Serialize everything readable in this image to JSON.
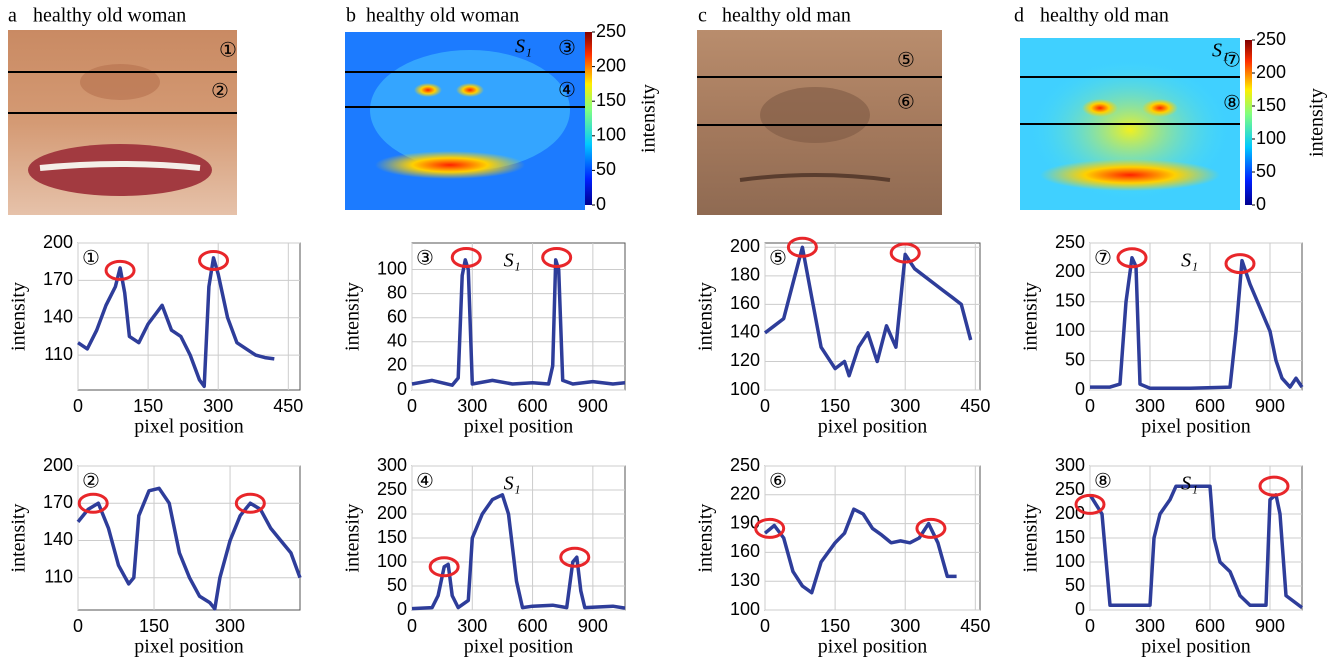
{
  "panels": [
    {
      "label": "a",
      "title": "healthy old woman",
      "markers": [
        "①",
        "②"
      ]
    },
    {
      "label": "b",
      "title": "healthy old woman",
      "markers": [
        "③",
        "④"
      ],
      "annotation": "S₁",
      "colorbar": {
        "label": "intensity",
        "lim": [
          0,
          250
        ],
        "ticks": [
          0,
          50,
          100,
          150,
          200,
          250
        ]
      }
    },
    {
      "label": "c",
      "title": "healthy old man",
      "markers": [
        "⑤",
        "⑥"
      ]
    },
    {
      "label": "d",
      "title": "healthy old man",
      "markers": [
        "⑦",
        "⑧"
      ],
      "annotation": "S₁",
      "colorbar": {
        "label": "intensity",
        "lim": [
          0,
          250
        ],
        "ticks": [
          0,
          50,
          100,
          150,
          200,
          250
        ]
      }
    }
  ],
  "chart_data": [
    {
      "type": "line",
      "marker": "①",
      "xlabel": "pixel position",
      "ylabel": "intensity",
      "color": "#2e3d9a",
      "grid": true,
      "xlim": [
        0,
        475
      ],
      "ylim": [
        82,
        200
      ],
      "xticks": [
        0,
        150,
        300,
        450
      ],
      "yticks": [
        110,
        140,
        170,
        200
      ],
      "x": [
        0,
        20,
        40,
        60,
        80,
        90,
        100,
        110,
        130,
        150,
        170,
        180,
        200,
        220,
        240,
        260,
        270,
        280,
        290,
        300,
        320,
        340,
        360,
        380,
        400,
        420
      ],
      "values": [
        120,
        115,
        130,
        150,
        165,
        180,
        160,
        125,
        120,
        135,
        145,
        150,
        130,
        125,
        110,
        90,
        85,
        165,
        188,
        175,
        140,
        120,
        115,
        110,
        108,
        107
      ],
      "highlights": [
        {
          "x": 90,
          "y": 178
        },
        {
          "x": 290,
          "y": 186
        }
      ]
    },
    {
      "type": "line",
      "marker": "②",
      "xlabel": "pixel position",
      "ylabel": "intensity",
      "color": "#2e3d9a",
      "grid": true,
      "xlim": [
        0,
        438
      ],
      "ylim": [
        84,
        200
      ],
      "xticks": [
        0,
        150,
        300
      ],
      "yticks": [
        110,
        140,
        170,
        200
      ],
      "x": [
        0,
        20,
        40,
        60,
        80,
        100,
        110,
        120,
        140,
        160,
        180,
        200,
        220,
        240,
        260,
        270,
        280,
        300,
        320,
        340,
        360,
        380,
        400,
        420,
        438
      ],
      "values": [
        155,
        165,
        170,
        150,
        120,
        105,
        110,
        160,
        180,
        182,
        170,
        130,
        110,
        95,
        90,
        85,
        110,
        140,
        160,
        170,
        165,
        150,
        140,
        130,
        110
      ],
      "highlights": [
        {
          "x": 30,
          "y": 170
        },
        {
          "x": 340,
          "y": 170
        }
      ]
    },
    {
      "type": "line",
      "marker": "③",
      "annotation": "S₁",
      "xlabel": "pixel position",
      "ylabel": "intensity",
      "color": "#2e3d9a",
      "grid": true,
      "xlim": [
        0,
        1060
      ],
      "ylim": [
        0,
        122
      ],
      "xticks": [
        0,
        300,
        600,
        900
      ],
      "yticks": [
        0,
        20,
        40,
        60,
        80,
        100
      ],
      "x": [
        0,
        100,
        200,
        230,
        250,
        265,
        280,
        300,
        400,
        500,
        600,
        680,
        700,
        715,
        730,
        750,
        800,
        900,
        1000,
        1060
      ],
      "values": [
        5,
        8,
        4,
        10,
        95,
        108,
        100,
        5,
        8,
        5,
        6,
        5,
        20,
        108,
        100,
        8,
        5,
        7,
        5,
        6
      ],
      "highlights": [
        {
          "x": 270,
          "y": 110
        },
        {
          "x": 720,
          "y": 110
        }
      ]
    },
    {
      "type": "line",
      "marker": "④",
      "annotation": "S₁",
      "xlabel": "pixel position",
      "ylabel": "intensity",
      "color": "#2e3d9a",
      "grid": true,
      "xlim": [
        0,
        1060
      ],
      "ylim": [
        0,
        300
      ],
      "xticks": [
        0,
        300,
        600,
        900
      ],
      "yticks": [
        0,
        50,
        100,
        150,
        200,
        250,
        300
      ],
      "x": [
        0,
        100,
        130,
        160,
        180,
        200,
        230,
        280,
        300,
        350,
        400,
        450,
        480,
        520,
        550,
        600,
        700,
        770,
        800,
        820,
        840,
        860,
        1000,
        1060
      ],
      "values": [
        3,
        5,
        30,
        90,
        95,
        30,
        5,
        20,
        150,
        200,
        230,
        240,
        200,
        60,
        5,
        8,
        10,
        5,
        100,
        110,
        40,
        5,
        8,
        4
      ],
      "highlights": [
        {
          "x": 160,
          "y": 90
        },
        {
          "x": 810,
          "y": 110
        }
      ]
    },
    {
      "type": "line",
      "marker": "⑤",
      "xlabel": "pixel position",
      "ylabel": "intensity",
      "color": "#2e3d9a",
      "grid": true,
      "xlim": [
        0,
        460
      ],
      "ylim": [
        100,
        203
      ],
      "xticks": [
        0,
        150,
        300,
        450
      ],
      "yticks": [
        100,
        120,
        140,
        160,
        180,
        200
      ],
      "x": [
        0,
        20,
        40,
        60,
        80,
        100,
        120,
        150,
        170,
        180,
        200,
        220,
        240,
        260,
        280,
        300,
        320,
        340,
        360,
        380,
        400,
        420,
        440
      ],
      "values": [
        140,
        145,
        150,
        175,
        200,
        165,
        130,
        115,
        120,
        110,
        130,
        140,
        120,
        145,
        130,
        195,
        185,
        180,
        175,
        170,
        165,
        160,
        135
      ],
      "highlights": [
        {
          "x": 80,
          "y": 200
        },
        {
          "x": 300,
          "y": 196
        }
      ]
    },
    {
      "type": "line",
      "marker": "⑥",
      "xlabel": "pixel position",
      "ylabel": "intensity",
      "color": "#2e3d9a",
      "grid": true,
      "xlim": [
        0,
        460
      ],
      "ylim": [
        100,
        250
      ],
      "xticks": [
        0,
        150,
        300,
        450
      ],
      "yticks": [
        100,
        130,
        160,
        190,
        220,
        250
      ],
      "x": [
        0,
        20,
        40,
        60,
        80,
        100,
        120,
        150,
        170,
        190,
        210,
        230,
        250,
        270,
        290,
        310,
        330,
        350,
        370,
        390,
        410
      ],
      "values": [
        180,
        188,
        175,
        140,
        125,
        118,
        150,
        170,
        180,
        205,
        200,
        185,
        178,
        170,
        172,
        170,
        175,
        190,
        170,
        135,
        135
      ],
      "highlights": [
        {
          "x": 10,
          "y": 185
        },
        {
          "x": 355,
          "y": 185
        }
      ]
    },
    {
      "type": "line",
      "marker": "⑦",
      "annotation": "S₁",
      "xlabel": "pixel position",
      "ylabel": "intensity",
      "color": "#2e3d9a",
      "grid": true,
      "xlim": [
        0,
        1060
      ],
      "ylim": [
        0,
        250
      ],
      "xticks": [
        0,
        300,
        600,
        900
      ],
      "yticks": [
        0,
        50,
        100,
        150,
        200,
        250
      ],
      "x": [
        0,
        100,
        150,
        180,
        210,
        230,
        250,
        300,
        500,
        700,
        730,
        760,
        800,
        850,
        900,
        930,
        960,
        1000,
        1030,
        1060
      ],
      "values": [
        5,
        5,
        10,
        150,
        225,
        210,
        10,
        3,
        3,
        5,
        100,
        220,
        180,
        140,
        100,
        50,
        20,
        5,
        20,
        5
      ],
      "highlights": [
        {
          "x": 210,
          "y": 225
        },
        {
          "x": 750,
          "y": 215
        }
      ]
    },
    {
      "type": "line",
      "marker": "⑧",
      "annotation": "S₁",
      "xlabel": "pixel position",
      "ylabel": "intensity",
      "color": "#2e3d9a",
      "grid": true,
      "xlim": [
        0,
        1060
      ],
      "ylim": [
        0,
        300
      ],
      "xticks": [
        0,
        300,
        600,
        900
      ],
      "yticks": [
        0,
        50,
        100,
        150,
        200,
        250,
        300
      ],
      "x": [
        0,
        30,
        60,
        100,
        300,
        320,
        350,
        400,
        430,
        600,
        620,
        650,
        700,
        750,
        800,
        880,
        900,
        930,
        950,
        980,
        1060
      ],
      "values": [
        240,
        220,
        200,
        10,
        10,
        150,
        200,
        230,
        258,
        258,
        150,
        100,
        80,
        30,
        10,
        10,
        230,
        240,
        200,
        30,
        5
      ],
      "highlights": [
        {
          "x": 0,
          "y": 220
        },
        {
          "x": 920,
          "y": 258
        }
      ]
    }
  ]
}
